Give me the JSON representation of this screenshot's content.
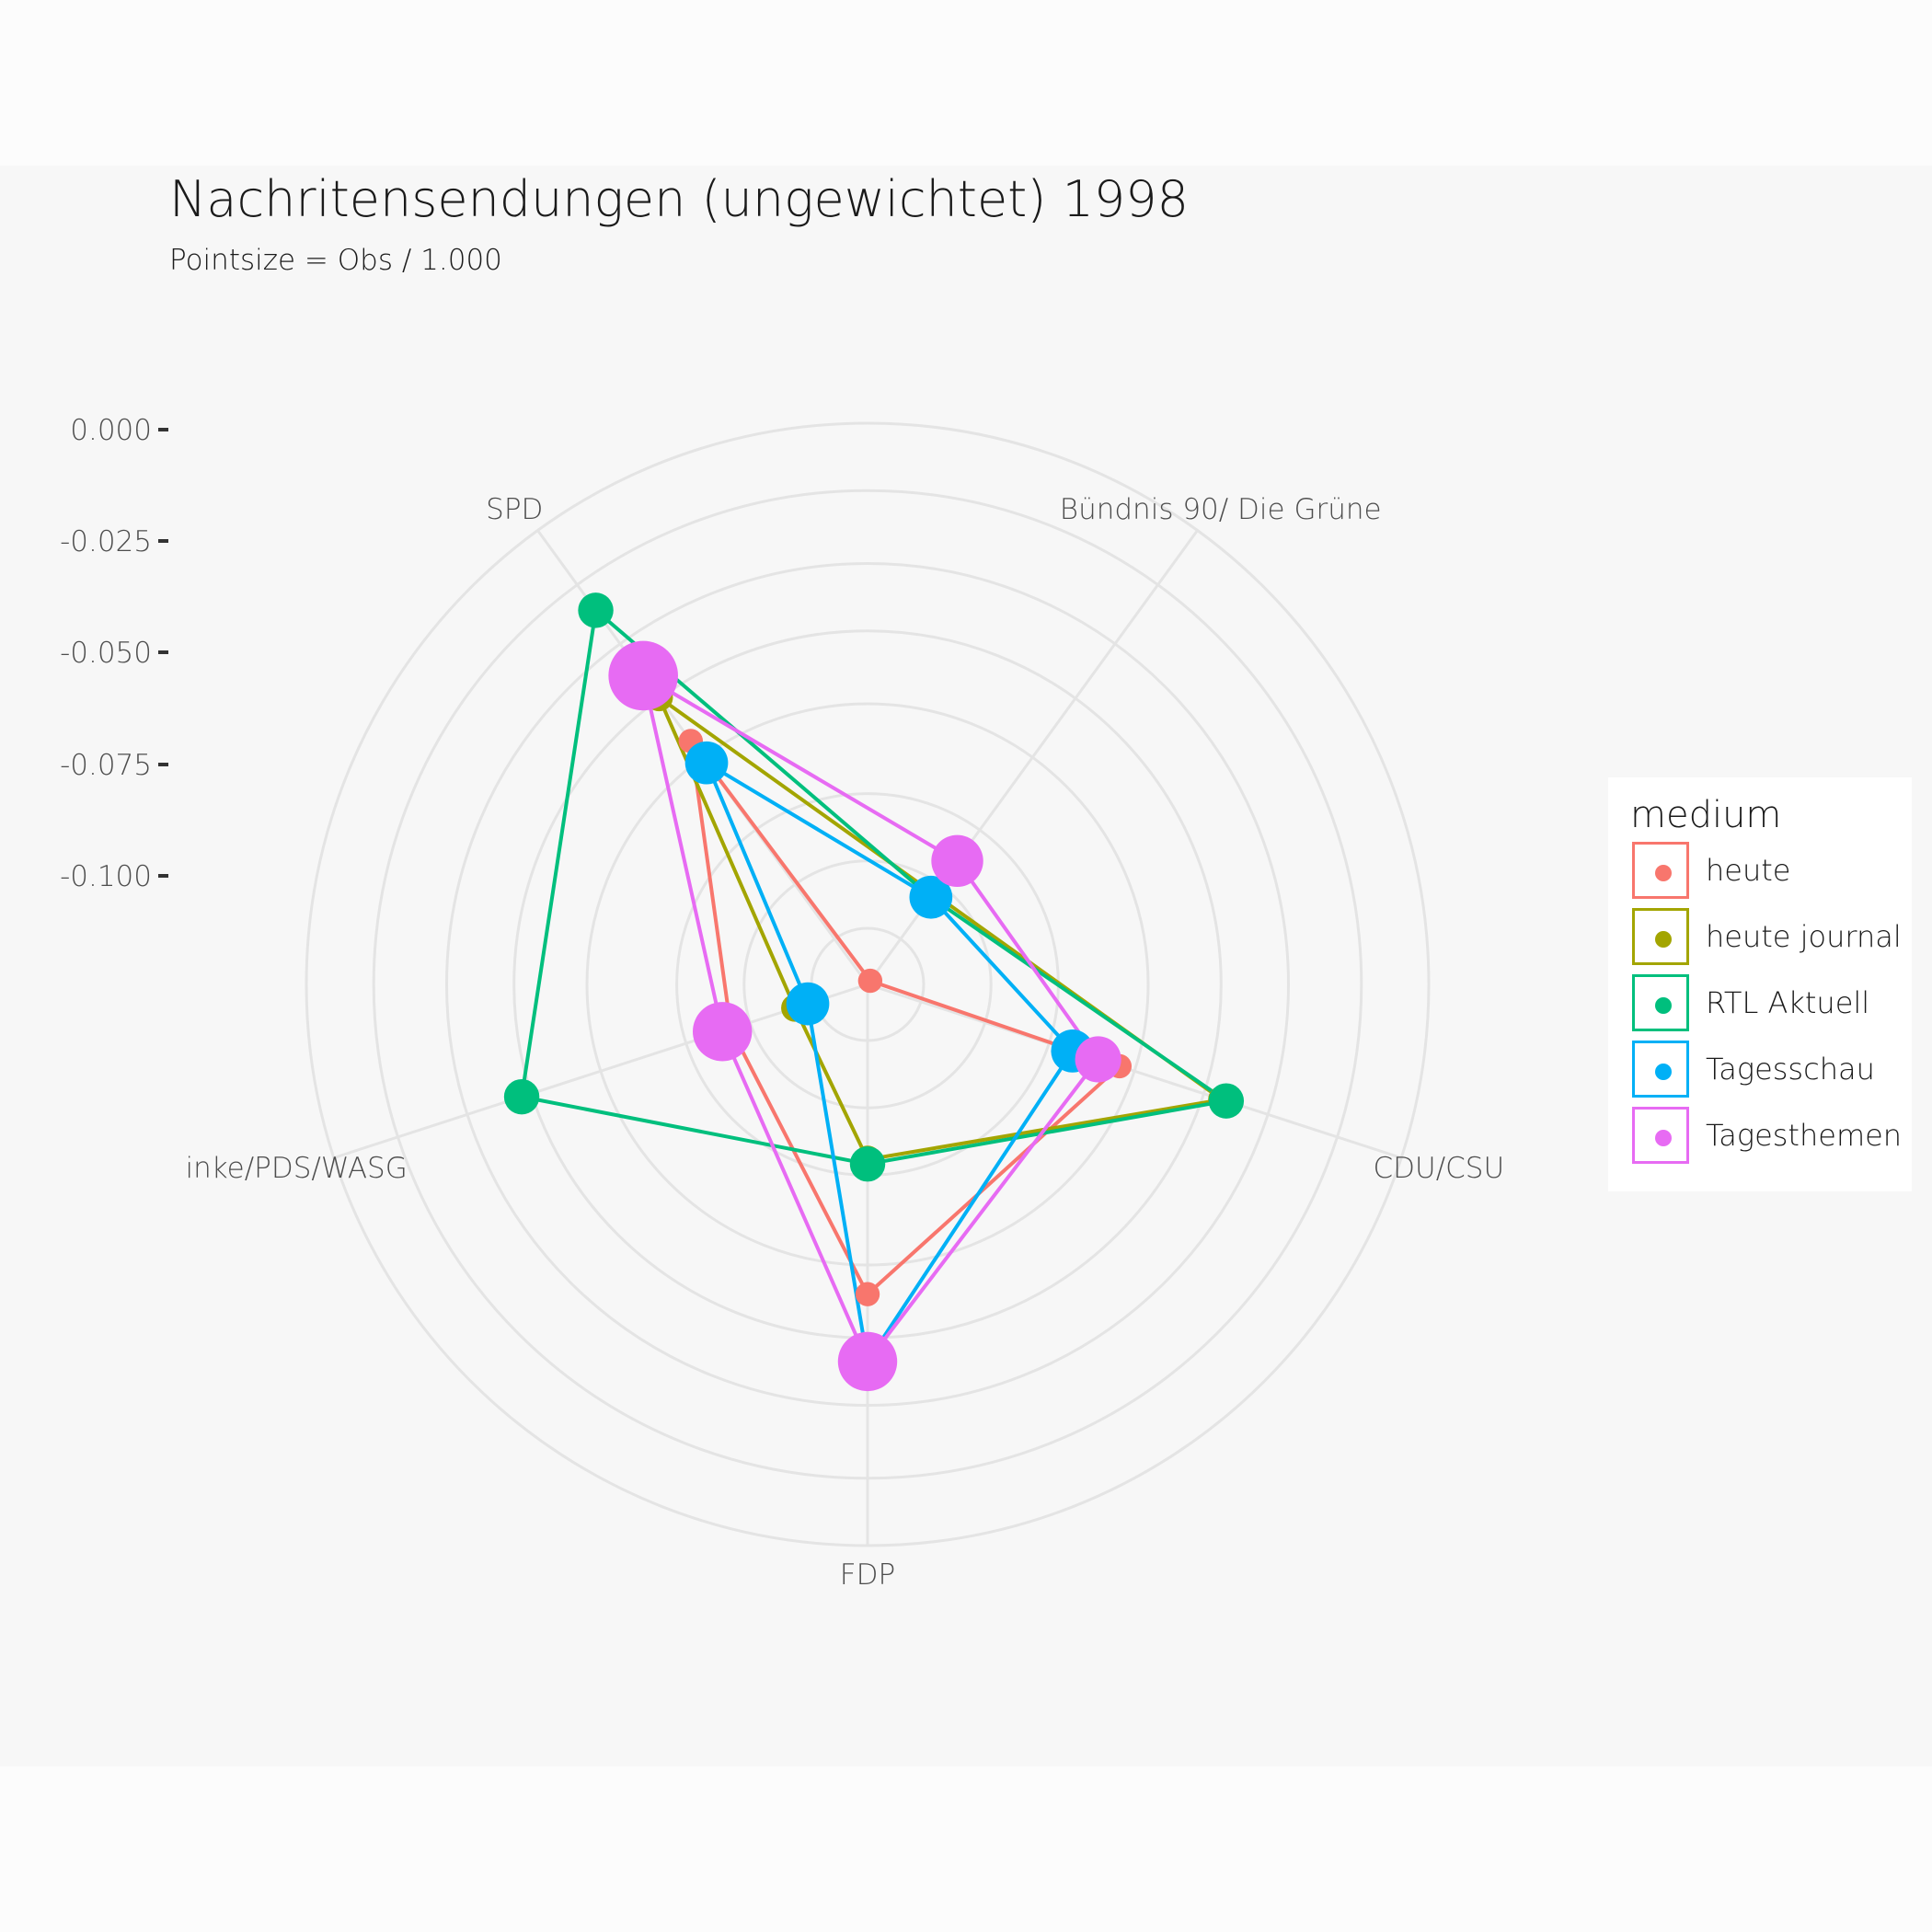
{
  "chart_data": {
    "type": "radar",
    "title": "Nachritensendungen (ungewichtet) 1998",
    "subtitle": "Pointsize = Obs / 1.000",
    "axes": [
      "SPD",
      "Bündnis 90/ Die Grüne",
      "CDU/CSU",
      "FDP",
      "inke/PDS/WASG"
    ],
    "radial_ticks": [
      "0.000",
      "-0.025",
      "-0.050",
      "-0.075",
      "-0.100"
    ],
    "radial_tick_values": [
      0.0,
      -0.025,
      -0.05,
      -0.075,
      -0.1
    ],
    "rlim": [
      -0.125,
      0.0
    ],
    "grid": true,
    "legend_title": "medium",
    "legend_position": "right",
    "series": [
      {
        "name": "heute",
        "color": "#F8766D",
        "values": [
          -0.058,
          -0.124,
          -0.066,
          -0.056,
          -0.093
        ],
        "sizes": [
          2,
          2,
          2,
          2,
          2
        ]
      },
      {
        "name": "heute journal",
        "color": "#A3A500",
        "values": [
          -0.046,
          -0.1,
          -0.042,
          -0.086,
          -0.108
        ],
        "sizes": [
          3,
          3,
          3,
          3,
          3
        ]
      },
      {
        "name": "RTL Aktuell",
        "color": "#00BF7D",
        "values": [
          -0.022,
          -0.101,
          -0.041,
          -0.085,
          -0.044
        ],
        "sizes": [
          6,
          6,
          6,
          6,
          6
        ]
      },
      {
        "name": "Tagesschau",
        "color": "#00B0F6",
        "values": [
          -0.064,
          -0.101,
          -0.077,
          -0.041,
          -0.111
        ],
        "sizes": [
          10,
          10,
          10,
          10,
          10
        ]
      },
      {
        "name": "Tagesthemen",
        "color": "#E76BF3",
        "values": [
          -0.04,
          -0.091,
          -0.071,
          -0.041,
          -0.091
        ],
        "sizes": [
          32,
          16,
          12,
          22,
          22
        ]
      }
    ]
  }
}
